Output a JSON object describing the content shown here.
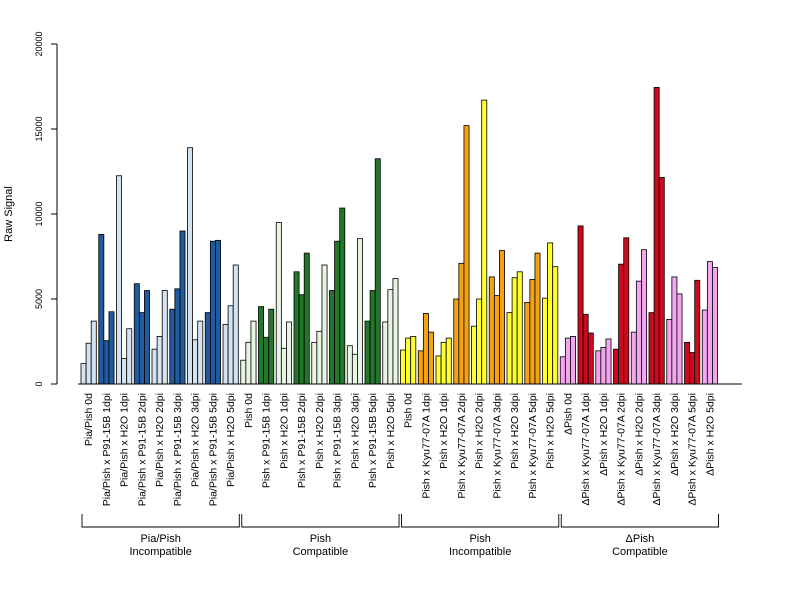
{
  "chart_data": {
    "type": "bar",
    "title": "",
    "xlabel": "",
    "ylabel": "Raw Signal",
    "ylim": [
      0,
      20000
    ],
    "yticks": [
      0,
      5000,
      10000,
      15000,
      20000
    ],
    "grid": false,
    "legend": "none",
    "bars_per_category": 3,
    "categories": [
      "Pia/Pish 0d",
      "Pia/Pish x P91-15B 1dpi",
      "Pia/Pish x H2O 1dpi",
      "Pia/Pish x P91-15B 2dpi",
      "Pia/Pish x H2O 2dpi",
      "Pia/Pish x P91-15B 3dpi",
      "Pia/Pish x H2O 3dpi",
      "Pia/Pish x P91-15B 5dpi",
      "Pia/Pish x H2O 5dpi",
      "Pish 0d",
      "Pish x P91-15B 1dpi",
      "Pish x H2O 1dpi",
      "Pish x P91-15B 2dpi",
      "Pish x H2O 2dpi",
      "Pish x P91-15B 3dpi",
      "Pish x H2O 3dpi",
      "Pish x P91-15B 5dpi",
      "Pish x H2O 5dpi",
      "Pish 0d",
      "Pish x Kyu77-07A 1dpi",
      "Pish x H2O 1dpi",
      "Pish x Kyu77-07A 2dpi",
      "Pish x H2O 2dpi",
      "Pish x Kyu77-07A 3dpi",
      "Pish x H2O 3dpi",
      "Pish x Kyu77-07A 5dpi",
      "Pish x H2O 5dpi",
      "ΔPish 0d",
      "ΔPish x Kyu77-07A 1dpi",
      "ΔPish x H2O 1dpi",
      "ΔPish x Kyu77-07A 2dpi",
      "ΔPish x H2O 2dpi",
      "ΔPish x Kyu77-07A 3dpi",
      "ΔPish x H2O 3dpi",
      "ΔPish x Kyu77-07A 5dpi",
      "ΔPish x H2O 5dpi"
    ],
    "groups": [
      {
        "line1": "Pia/Pish",
        "line2": "Incompatible",
        "start": 0,
        "end": 8,
        "colors": {
          "mock": "#d4e3f1",
          "pathogen": "#1f5b9e"
        }
      },
      {
        "line1": "Pish",
        "line2": "Compatible",
        "start": 9,
        "end": 17,
        "colors": {
          "mock": "#e8f4e4",
          "pathogen": "#22772b"
        }
      },
      {
        "line1": "Pish",
        "line2": "Incompatible",
        "start": 18,
        "end": 26,
        "colors": {
          "mock": "#ffff33",
          "pathogen": "#f5a212"
        }
      },
      {
        "line1": "ΔPish",
        "line2": "Compatible",
        "start": 27,
        "end": 35,
        "colors": {
          "mock": "#f3a5ee",
          "pathogen": "#cc0a1e"
        }
      }
    ],
    "values": [
      [
        1200,
        2400,
        3700
      ],
      [
        8800,
        2550,
        4250
      ],
      [
        12250,
        1500,
        3250
      ],
      [
        5900,
        4200,
        5500
      ],
      [
        2050,
        2800,
        5500
      ],
      [
        4400,
        5600,
        9000
      ],
      [
        13900,
        2600,
        3700
      ],
      [
        4200,
        8400,
        8450
      ],
      [
        3500,
        4600,
        7000
      ],
      [
        1400,
        2450,
        3700
      ],
      [
        4550,
        2750,
        4400
      ],
      [
        9500,
        2100,
        3650
      ],
      [
        6600,
        5250,
        7700
      ],
      [
        2450,
        3100,
        7000
      ],
      [
        5500,
        8400,
        10350
      ],
      [
        2250,
        1750,
        8550
      ],
      [
        3700,
        5500,
        13250
      ],
      [
        3650,
        5550,
        6200
      ],
      [
        2000,
        2700,
        2800
      ],
      [
        1950,
        4150,
        3050
      ],
      [
        1650,
        2450,
        2700
      ],
      [
        5000,
        7100,
        15200
      ],
      [
        3400,
        5000,
        16700
      ],
      [
        6300,
        5200,
        7850
      ],
      [
        4200,
        6250,
        6600
      ],
      [
        4800,
        6150,
        7700
      ],
      [
        5050,
        8300,
        6900
      ],
      [
        1600,
        2700,
        2800
      ],
      [
        9300,
        4100,
        3000
      ],
      [
        1950,
        2150,
        2650
      ],
      [
        2050,
        7050,
        8600
      ],
      [
        3050,
        6050,
        7900
      ],
      [
        4200,
        17450,
        12150
      ],
      [
        3800,
        6300,
        5300
      ],
      [
        2450,
        1850,
        6100
      ],
      [
        4350,
        7200,
        6850
      ]
    ]
  }
}
